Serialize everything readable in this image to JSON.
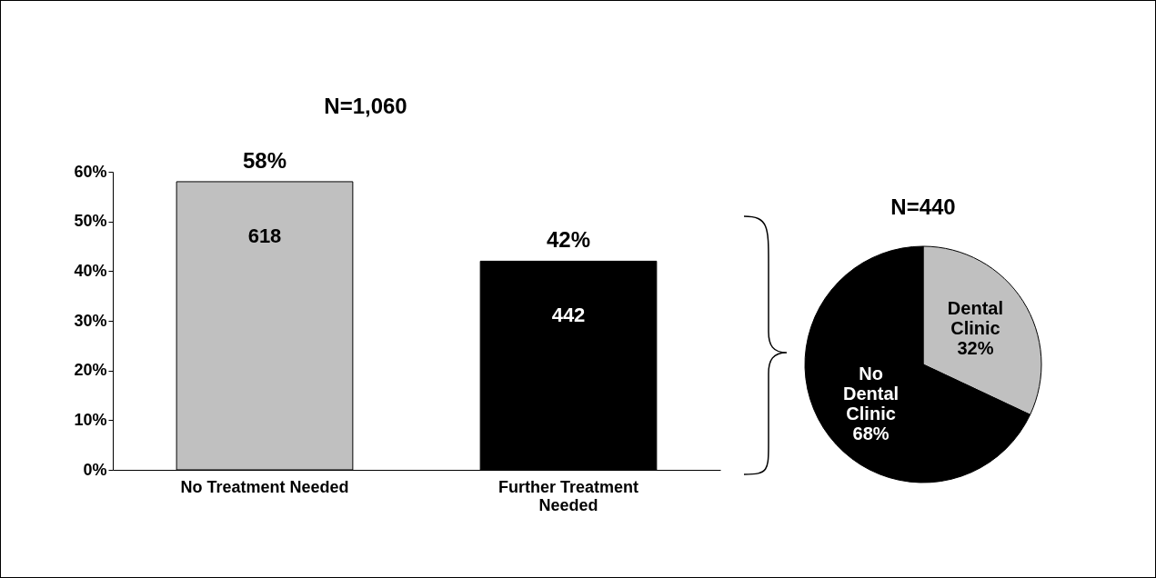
{
  "chart_data": [
    {
      "type": "bar",
      "title": "N=1,060",
      "categories": [
        "No Treatment Needed",
        "Further Treatment Needed"
      ],
      "values": [
        58,
        42
      ],
      "colors": [
        "#c0c0c0",
        "#000000"
      ],
      "value_labels": [
        "58%",
        "42%"
      ],
      "ylim": [
        0,
        60
      ],
      "yticks": [
        {
          "value": 0,
          "label": "0%"
        },
        {
          "value": 10,
          "label": "10%"
        },
        {
          "value": 20,
          "label": "20%"
        },
        {
          "value": 30,
          "label": "30%"
        },
        {
          "value": 40,
          "label": "40%"
        },
        {
          "value": 50,
          "label": "50%"
        },
        {
          "value": 60,
          "label": "60%"
        }
      ],
      "grid": false,
      "annotations": [
        "618",
        "442"
      ]
    },
    {
      "type": "pie",
      "title": "N=440",
      "categories": [
        "Dental Clinic",
        "No Dental Clinic"
      ],
      "values": [
        32,
        68
      ],
      "colors": [
        "#c0c0c0",
        "#000000"
      ],
      "value_labels": [
        "32%",
        "68%"
      ]
    }
  ]
}
